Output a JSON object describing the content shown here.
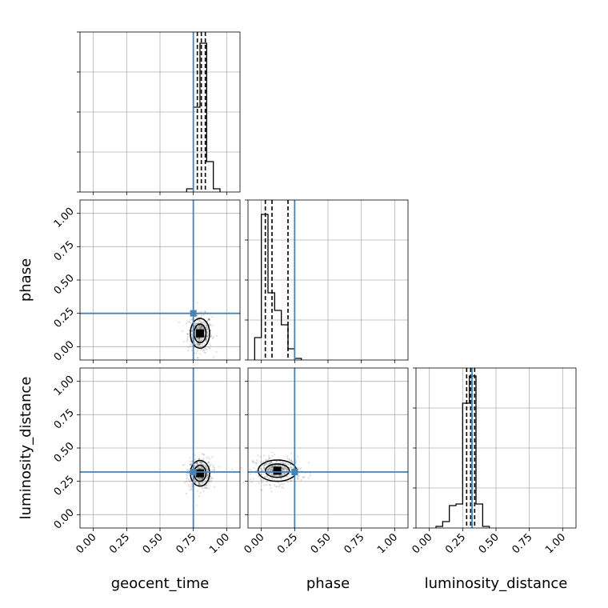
{
  "chart_data": {
    "type": "corner",
    "parameters": [
      "geocent_time",
      "phase",
      "luminosity_distance"
    ],
    "axis_range": [
      -0.1,
      1.1
    ],
    "ticks": [
      0.0,
      0.25,
      0.5,
      0.75,
      1.0
    ],
    "tick_labels": [
      "0.00",
      "0.25",
      "0.50",
      "0.75",
      "1.00"
    ],
    "grid": true,
    "truths": [
      0.75,
      0.25,
      0.32
    ],
    "colors": {
      "truth": "#4682b4",
      "hist": "#000000",
      "density": "#000000",
      "grid": "#b0b0b0",
      "spine": "#000000"
    },
    "histograms": [
      {
        "parameter": "geocent_time",
        "bins": [
          0.7,
          0.75,
          0.8,
          0.85,
          0.9,
          0.95
        ],
        "counts": [
          0.02,
          0.53,
          0.93,
          0.19,
          0.02
        ],
        "quantile_lines": [
          0.78,
          0.81,
          0.84
        ]
      },
      {
        "parameter": "phase",
        "bins": [
          -0.05,
          0.0,
          0.05,
          0.1,
          0.15,
          0.2,
          0.25,
          0.3
        ],
        "counts": [
          0.14,
          0.91,
          0.42,
          0.31,
          0.22,
          0.07,
          0.01
        ],
        "quantile_lines": [
          0.03,
          0.08,
          0.2
        ]
      },
      {
        "parameter": "luminosity_distance",
        "bins": [
          0.05,
          0.1,
          0.15,
          0.2,
          0.25,
          0.3,
          0.35,
          0.4,
          0.45
        ],
        "counts": [
          0.01,
          0.04,
          0.14,
          0.15,
          0.78,
          0.95,
          0.15,
          0.01
        ],
        "quantile_lines": [
          0.28,
          0.31,
          0.34
        ]
      }
    ],
    "scatter_panels": [
      {
        "x": "geocent_time",
        "y": "phase",
        "center": [
          0.8,
          0.1
        ],
        "spread": [
          0.045,
          0.07
        ]
      },
      {
        "x": "geocent_time",
        "y": "luminosity_distance",
        "center": [
          0.8,
          0.31
        ],
        "spread": [
          0.045,
          0.06
        ]
      },
      {
        "x": "phase",
        "y": "luminosity_distance",
        "center": [
          0.12,
          0.33
        ],
        "spread": [
          0.09,
          0.05
        ]
      }
    ]
  }
}
